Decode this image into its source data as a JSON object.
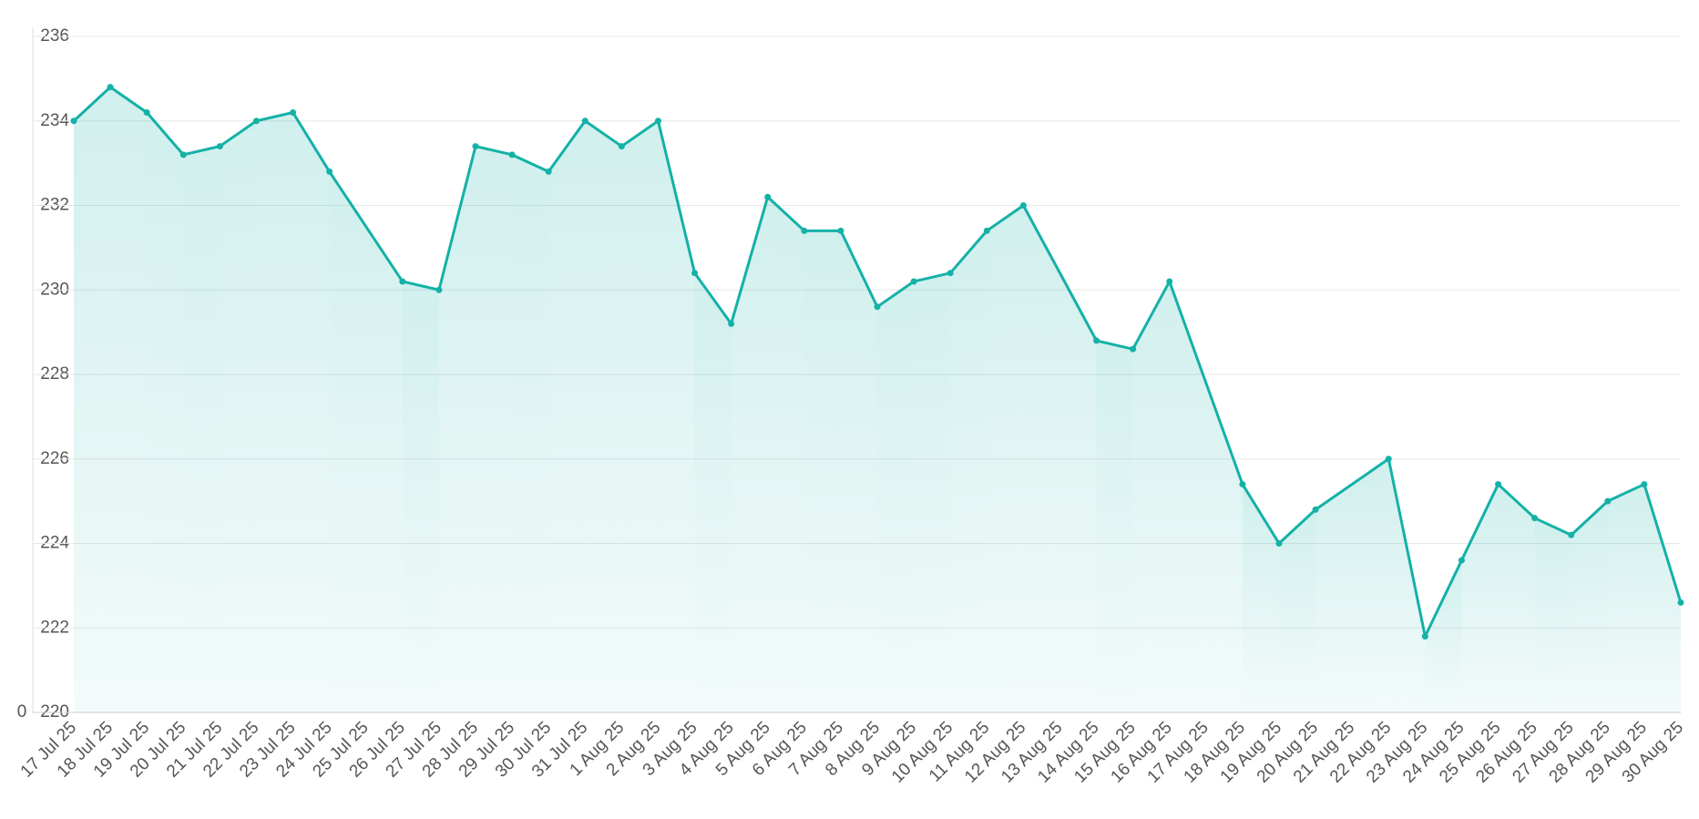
{
  "chart_data": {
    "type": "line",
    "color": "#14b1a7",
    "grid": true,
    "span_gaps": true,
    "annotations": [
      "0"
    ],
    "categories": [
      "17 Jul 25",
      "18 Jul 25",
      "19 Jul 25",
      "20 Jul 25",
      "21 Jul 25",
      "22 Jul 25",
      "23 Jul 25",
      "24 Jul 25",
      "25 Jul 25",
      "26 Jul 25",
      "27 Jul 25",
      "28 Jul 25",
      "29 Jul 25",
      "30 Jul 25",
      "31 Jul 25",
      "1 Aug 25",
      "2 Aug 25",
      "3 Aug 25",
      "4 Aug 25",
      "5 Aug 25",
      "6 Aug 25",
      "7 Aug 25",
      "8 Aug 25",
      "9 Aug 25",
      "10 Aug 25",
      "11 Aug 25",
      "12 Aug 25",
      "13 Aug 25",
      "14 Aug 25",
      "15 Aug 25",
      "16 Aug 25",
      "17 Aug 25",
      "18 Aug 25",
      "19 Aug 25",
      "20 Aug 25",
      "21 Aug 25",
      "22 Aug 25",
      "23 Aug 25",
      "24 Aug 25",
      "25 Aug 25",
      "26 Aug 25",
      "27 Aug 25",
      "28 Aug 25",
      "29 Aug 25",
      "30 Aug 25"
    ],
    "values": [
      234.0,
      234.8,
      234.2,
      233.2,
      233.4,
      234.0,
      234.2,
      232.8,
      null,
      230.2,
      230.0,
      233.4,
      233.2,
      232.8,
      234.0,
      233.4,
      234.0,
      230.4,
      229.2,
      232.2,
      231.4,
      231.4,
      229.6,
      230.2,
      230.4,
      231.4,
      232.0,
      null,
      228.8,
      228.6,
      230.2,
      null,
      225.4,
      224.0,
      224.8,
      null,
      226.0,
      221.8,
      223.6,
      225.4,
      224.6,
      224.2,
      225.0,
      225.4,
      222.6
    ],
    "ylim": [
      220,
      236
    ],
    "yticks": [
      220,
      222,
      224,
      226,
      228,
      230,
      232,
      234,
      236
    ]
  }
}
